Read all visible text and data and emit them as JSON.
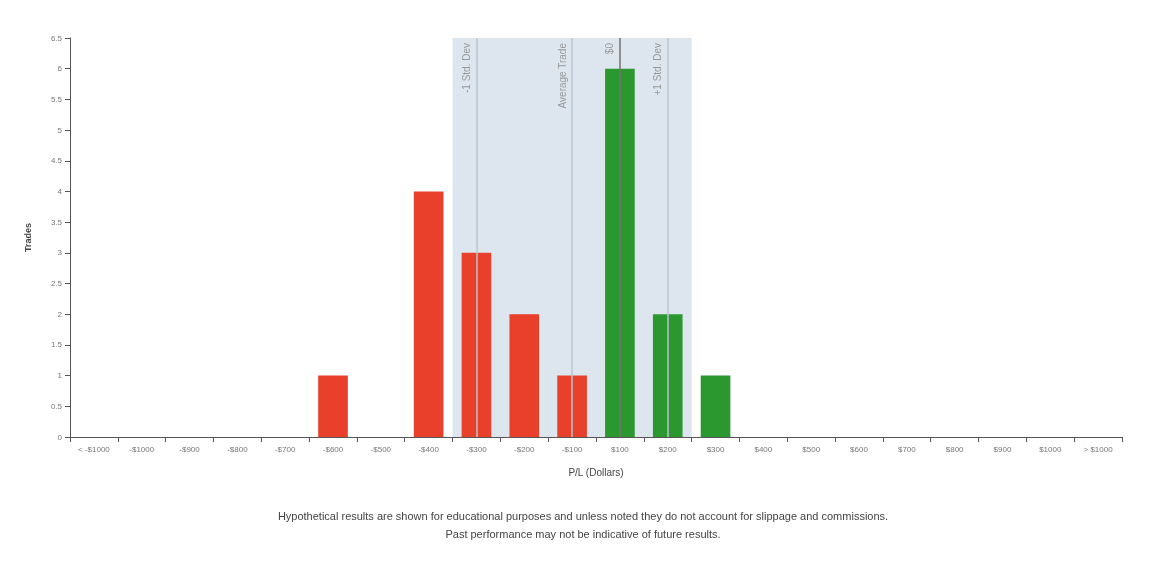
{
  "chart_data": {
    "type": "bar",
    "xlabel": "P/L (Dollars)",
    "ylabel": "Trades",
    "categories": [
      "< -$1000",
      "-$1000",
      "-$900",
      "-$800",
      "-$700",
      "-$600",
      "-$500",
      "-$400",
      "-$300",
      "-$200",
      "-$100",
      "$100",
      "$200",
      "$300",
      "$400",
      "$500",
      "$600",
      "$700",
      "$800",
      "$900",
      "$1000",
      "> $1000"
    ],
    "values": [
      0,
      0,
      0,
      0,
      0,
      1,
      0,
      4,
      3,
      2,
      1,
      6,
      2,
      1,
      0,
      0,
      0,
      0,
      0,
      0,
      0,
      0
    ],
    "colors": [
      "#e8402a",
      "#e8402a",
      "#e8402a",
      "#e8402a",
      "#e8402a",
      "#e8402a",
      "#e8402a",
      "#e8402a",
      "#e8402a",
      "#e8402a",
      "#e8402a",
      "#2a982e",
      "#2a982e",
      "#2a982e",
      "#2a982e",
      "#2a982e",
      "#2a982e",
      "#2a982e",
      "#2a982e",
      "#2a982e",
      "#2a982e",
      "#2a982e"
    ],
    "ylim": [
      0,
      6.5
    ],
    "yticks": [
      0,
      0.5,
      1,
      1.5,
      2,
      2.5,
      3,
      3.5,
      4,
      4.5,
      5,
      5.5,
      6,
      6.5
    ],
    "bands": [
      {
        "axis": "x",
        "from": "-$300",
        "to": "$200",
        "color": "#dde6ef"
      }
    ],
    "ref_lines": [
      {
        "axis": "x",
        "value": "-$300",
        "label": "-1 Std. Dev",
        "color": "#b8c4cf"
      },
      {
        "axis": "x",
        "value": "-$100",
        "label": "Average Trade",
        "color": "#b8c4cf"
      },
      {
        "axis": "x",
        "value": "$100",
        "label": "$0",
        "color": "#707070"
      },
      {
        "axis": "x",
        "value": "$200",
        "label": "+1 Std. Dev",
        "color": "#b8c4cf"
      }
    ],
    "annotations": [
      "Hypothetical results are shown for educational purposes and unless noted they do not account for slippage and commissions.",
      "Past performance may not be indicative of future results."
    ],
    "grid": false
  }
}
